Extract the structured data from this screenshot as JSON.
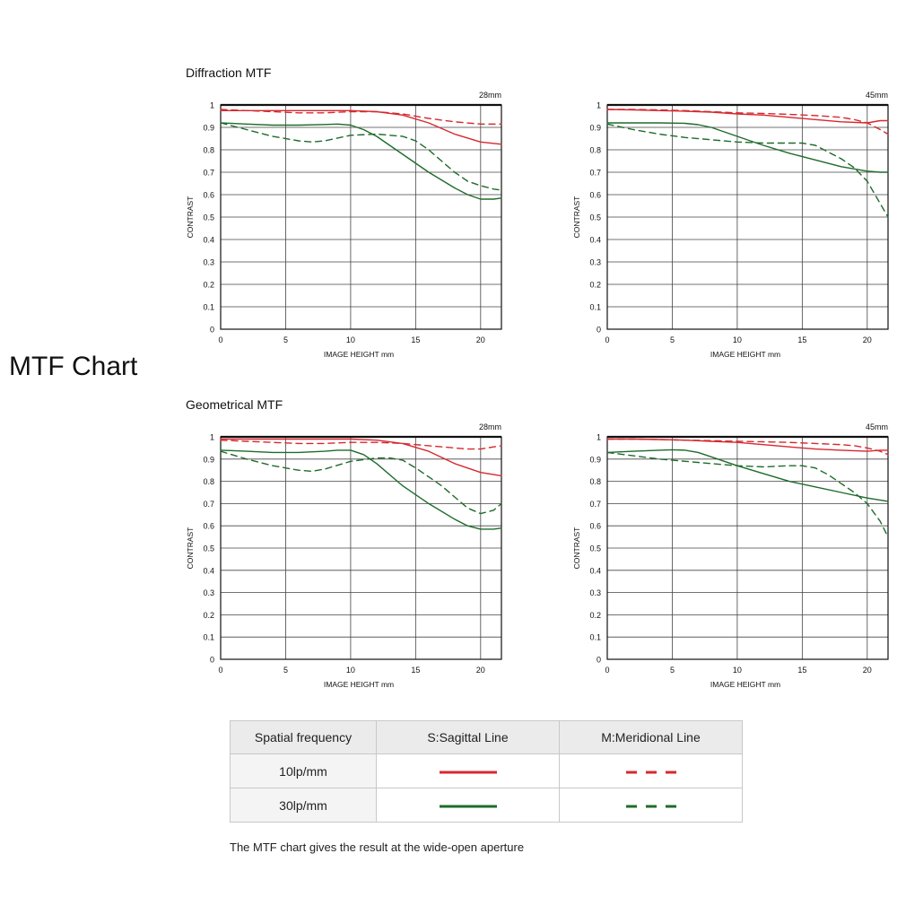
{
  "page": {
    "title": "MTF Chart",
    "sections": [
      "Diffraction MTF",
      "Geometrical MTF"
    ],
    "footnote": "The MTF chart gives the result at the wide-open aperture"
  },
  "legend": {
    "headers": [
      "Spatial frequency",
      "S:Sagittal Line",
      "M:Meridional Line"
    ],
    "rows": [
      {
        "label": "10lp/mm",
        "color": "#d7282f"
      },
      {
        "label": "30lp/mm",
        "color": "#1e6b2a"
      }
    ]
  },
  "colors": {
    "lp10": "#d7282f",
    "lp30": "#1e6b2a"
  },
  "chart_data": [
    {
      "type": "line",
      "section": "Diffraction MTF",
      "focal_label": "28mm",
      "xlabel": "IMAGE HEIGHT   mm",
      "ylabel": "CONTRAST",
      "xlim": [
        0,
        21.6
      ],
      "ylim": [
        0,
        1
      ],
      "xticks": [
        0,
        5,
        10,
        15,
        20
      ],
      "yticks": [
        "0",
        "0.1",
        "0.2",
        "0.3",
        "0.4",
        "0.5",
        "0.6",
        "0.7",
        "0.8",
        "0.9",
        "1"
      ],
      "grid": true,
      "series": [
        {
          "freq": "10lp/mm",
          "line": "sagittal",
          "x": [
            0,
            2,
            4,
            6,
            8,
            10,
            12,
            14,
            16,
            18,
            20,
            21.6
          ],
          "y": [
            0.975,
            0.975,
            0.975,
            0.975,
            0.975,
            0.975,
            0.97,
            0.955,
            0.92,
            0.87,
            0.835,
            0.825
          ]
        },
        {
          "freq": "10lp/mm",
          "line": "meridional",
          "x": [
            0,
            2,
            4,
            6,
            8,
            10,
            12,
            14,
            16,
            18,
            20,
            21.6
          ],
          "y": [
            0.98,
            0.975,
            0.97,
            0.965,
            0.965,
            0.97,
            0.97,
            0.96,
            0.94,
            0.925,
            0.915,
            0.915
          ]
        },
        {
          "freq": "30lp/mm",
          "line": "sagittal",
          "x": [
            0,
            2,
            4,
            6,
            8,
            9,
            10,
            11,
            12,
            14,
            16,
            18,
            19,
            20,
            21,
            21.6
          ],
          "y": [
            0.92,
            0.915,
            0.91,
            0.91,
            0.913,
            0.915,
            0.91,
            0.89,
            0.86,
            0.78,
            0.7,
            0.63,
            0.6,
            0.58,
            0.58,
            0.585
          ]
        },
        {
          "freq": "30lp/mm",
          "line": "meridional",
          "x": [
            0,
            2,
            4,
            6,
            7,
            8,
            10,
            12,
            14,
            15,
            16,
            17,
            18,
            19,
            20,
            21,
            21.6
          ],
          "y": [
            0.92,
            0.89,
            0.86,
            0.84,
            0.835,
            0.84,
            0.865,
            0.87,
            0.86,
            0.84,
            0.8,
            0.75,
            0.7,
            0.66,
            0.64,
            0.625,
            0.62
          ]
        }
      ]
    },
    {
      "type": "line",
      "section": "Diffraction MTF",
      "focal_label": "45mm",
      "xlabel": "IMAGE HEIGHT   mm",
      "ylabel": "CONTRAST",
      "xlim": [
        0,
        21.6
      ],
      "ylim": [
        0,
        1
      ],
      "xticks": [
        0,
        5,
        10,
        15,
        20
      ],
      "yticks": [
        "0",
        "0.1",
        "0.2",
        "0.3",
        "0.4",
        "0.5",
        "0.6",
        "0.7",
        "0.8",
        "0.9",
        "1"
      ],
      "grid": true,
      "series": [
        {
          "freq": "10lp/mm",
          "line": "sagittal",
          "x": [
            0,
            2,
            4,
            6,
            8,
            10,
            12,
            14,
            16,
            18,
            20,
            21,
            21.6
          ],
          "y": [
            0.98,
            0.978,
            0.975,
            0.972,
            0.968,
            0.96,
            0.955,
            0.945,
            0.935,
            0.925,
            0.92,
            0.93,
            0.93
          ]
        },
        {
          "freq": "10lp/mm",
          "line": "meridional",
          "x": [
            0,
            2,
            4,
            6,
            8,
            10,
            12,
            14,
            16,
            18,
            19,
            20,
            21,
            21.6
          ],
          "y": [
            0.98,
            0.98,
            0.978,
            0.975,
            0.97,
            0.965,
            0.962,
            0.958,
            0.953,
            0.945,
            0.935,
            0.92,
            0.89,
            0.87
          ]
        },
        {
          "freq": "30lp/mm",
          "line": "sagittal",
          "x": [
            0,
            2,
            4,
            6,
            7,
            8,
            10,
            12,
            14,
            16,
            18,
            20,
            21,
            21.6
          ],
          "y": [
            0.92,
            0.92,
            0.92,
            0.918,
            0.912,
            0.9,
            0.86,
            0.82,
            0.785,
            0.755,
            0.725,
            0.705,
            0.7,
            0.7
          ]
        },
        {
          "freq": "30lp/mm",
          "line": "meridional",
          "x": [
            0,
            2,
            4,
            6,
            8,
            10,
            12,
            14,
            15,
            16,
            17,
            18,
            19,
            20,
            21,
            21.6
          ],
          "y": [
            0.915,
            0.89,
            0.87,
            0.855,
            0.845,
            0.835,
            0.83,
            0.83,
            0.83,
            0.82,
            0.79,
            0.76,
            0.72,
            0.66,
            0.56,
            0.5
          ]
        }
      ]
    },
    {
      "type": "line",
      "section": "Geometrical MTF",
      "focal_label": "28mm",
      "xlabel": "IMAGE HEIGHT   mm",
      "ylabel": "CONTRAST",
      "xlim": [
        0,
        21.6
      ],
      "ylim": [
        0,
        1
      ],
      "xticks": [
        0,
        5,
        10,
        15,
        20
      ],
      "yticks": [
        "0",
        "0.1",
        "0.2",
        "0.3",
        "0.4",
        "0.5",
        "0.6",
        "0.7",
        "0.8",
        "0.9",
        "1"
      ],
      "grid": true,
      "series": [
        {
          "freq": "10lp/mm",
          "line": "sagittal",
          "x": [
            0,
            2,
            4,
            6,
            8,
            10,
            12,
            14,
            16,
            18,
            20,
            21.6
          ],
          "y": [
            0.99,
            0.99,
            0.99,
            0.99,
            0.99,
            0.99,
            0.985,
            0.97,
            0.935,
            0.88,
            0.84,
            0.825
          ]
        },
        {
          "freq": "10lp/mm",
          "line": "meridional",
          "x": [
            0,
            2,
            4,
            6,
            8,
            10,
            12,
            14,
            16,
            18,
            19,
            20,
            21,
            21.6
          ],
          "y": [
            0.985,
            0.98,
            0.975,
            0.97,
            0.97,
            0.975,
            0.975,
            0.97,
            0.96,
            0.95,
            0.945,
            0.945,
            0.955,
            0.96
          ]
        },
        {
          "freq": "30lp/mm",
          "line": "sagittal",
          "x": [
            0,
            2,
            4,
            6,
            8,
            9,
            10,
            11,
            12,
            14,
            16,
            18,
            19,
            20,
            21,
            21.6
          ],
          "y": [
            0.94,
            0.935,
            0.93,
            0.93,
            0.935,
            0.94,
            0.94,
            0.92,
            0.88,
            0.78,
            0.7,
            0.63,
            0.6,
            0.585,
            0.585,
            0.59
          ]
        },
        {
          "freq": "30lp/mm",
          "line": "meridional",
          "x": [
            0,
            2,
            4,
            6,
            7,
            8,
            10,
            12,
            13,
            14,
            15,
            16,
            17,
            18,
            19,
            20,
            21,
            21.6
          ],
          "y": [
            0.935,
            0.9,
            0.87,
            0.85,
            0.845,
            0.855,
            0.89,
            0.905,
            0.905,
            0.895,
            0.86,
            0.82,
            0.78,
            0.73,
            0.68,
            0.655,
            0.67,
            0.7
          ]
        }
      ]
    },
    {
      "type": "line",
      "section": "Geometrical MTF",
      "focal_label": "45mm",
      "xlabel": "IMAGE HEIGHT   mm",
      "ylabel": "CONTRAST",
      "xlim": [
        0,
        21.6
      ],
      "ylim": [
        0,
        1
      ],
      "xticks": [
        0,
        5,
        10,
        15,
        20
      ],
      "yticks": [
        "0",
        "0.1",
        "0.2",
        "0.3",
        "0.4",
        "0.5",
        "0.6",
        "0.7",
        "0.8",
        "0.9",
        "1"
      ],
      "grid": true,
      "series": [
        {
          "freq": "10lp/mm",
          "line": "sagittal",
          "x": [
            0,
            2,
            4,
            6,
            8,
            10,
            12,
            14,
            16,
            18,
            20,
            21,
            21.6
          ],
          "y": [
            0.99,
            0.99,
            0.988,
            0.985,
            0.98,
            0.975,
            0.965,
            0.955,
            0.945,
            0.94,
            0.935,
            0.94,
            0.94
          ]
        },
        {
          "freq": "10lp/mm",
          "line": "meridional",
          "x": [
            0,
            2,
            4,
            6,
            8,
            10,
            12,
            14,
            16,
            18,
            19,
            20,
            21,
            21.6
          ],
          "y": [
            0.99,
            0.99,
            0.988,
            0.985,
            0.983,
            0.98,
            0.978,
            0.975,
            0.97,
            0.965,
            0.96,
            0.95,
            0.935,
            0.92
          ]
        },
        {
          "freq": "30lp/mm",
          "line": "sagittal",
          "x": [
            0,
            2,
            4,
            5,
            6,
            7,
            8,
            10,
            12,
            14,
            16,
            18,
            20,
            21.6
          ],
          "y": [
            0.93,
            0.935,
            0.94,
            0.942,
            0.94,
            0.93,
            0.91,
            0.87,
            0.835,
            0.8,
            0.775,
            0.75,
            0.725,
            0.71
          ]
        },
        {
          "freq": "30lp/mm",
          "line": "meridional",
          "x": [
            0,
            2,
            4,
            6,
            8,
            10,
            12,
            14,
            15,
            16,
            17,
            18,
            19,
            20,
            21,
            21.6
          ],
          "y": [
            0.93,
            0.915,
            0.9,
            0.89,
            0.88,
            0.87,
            0.865,
            0.87,
            0.87,
            0.86,
            0.83,
            0.79,
            0.75,
            0.7,
            0.62,
            0.55
          ]
        }
      ]
    }
  ]
}
